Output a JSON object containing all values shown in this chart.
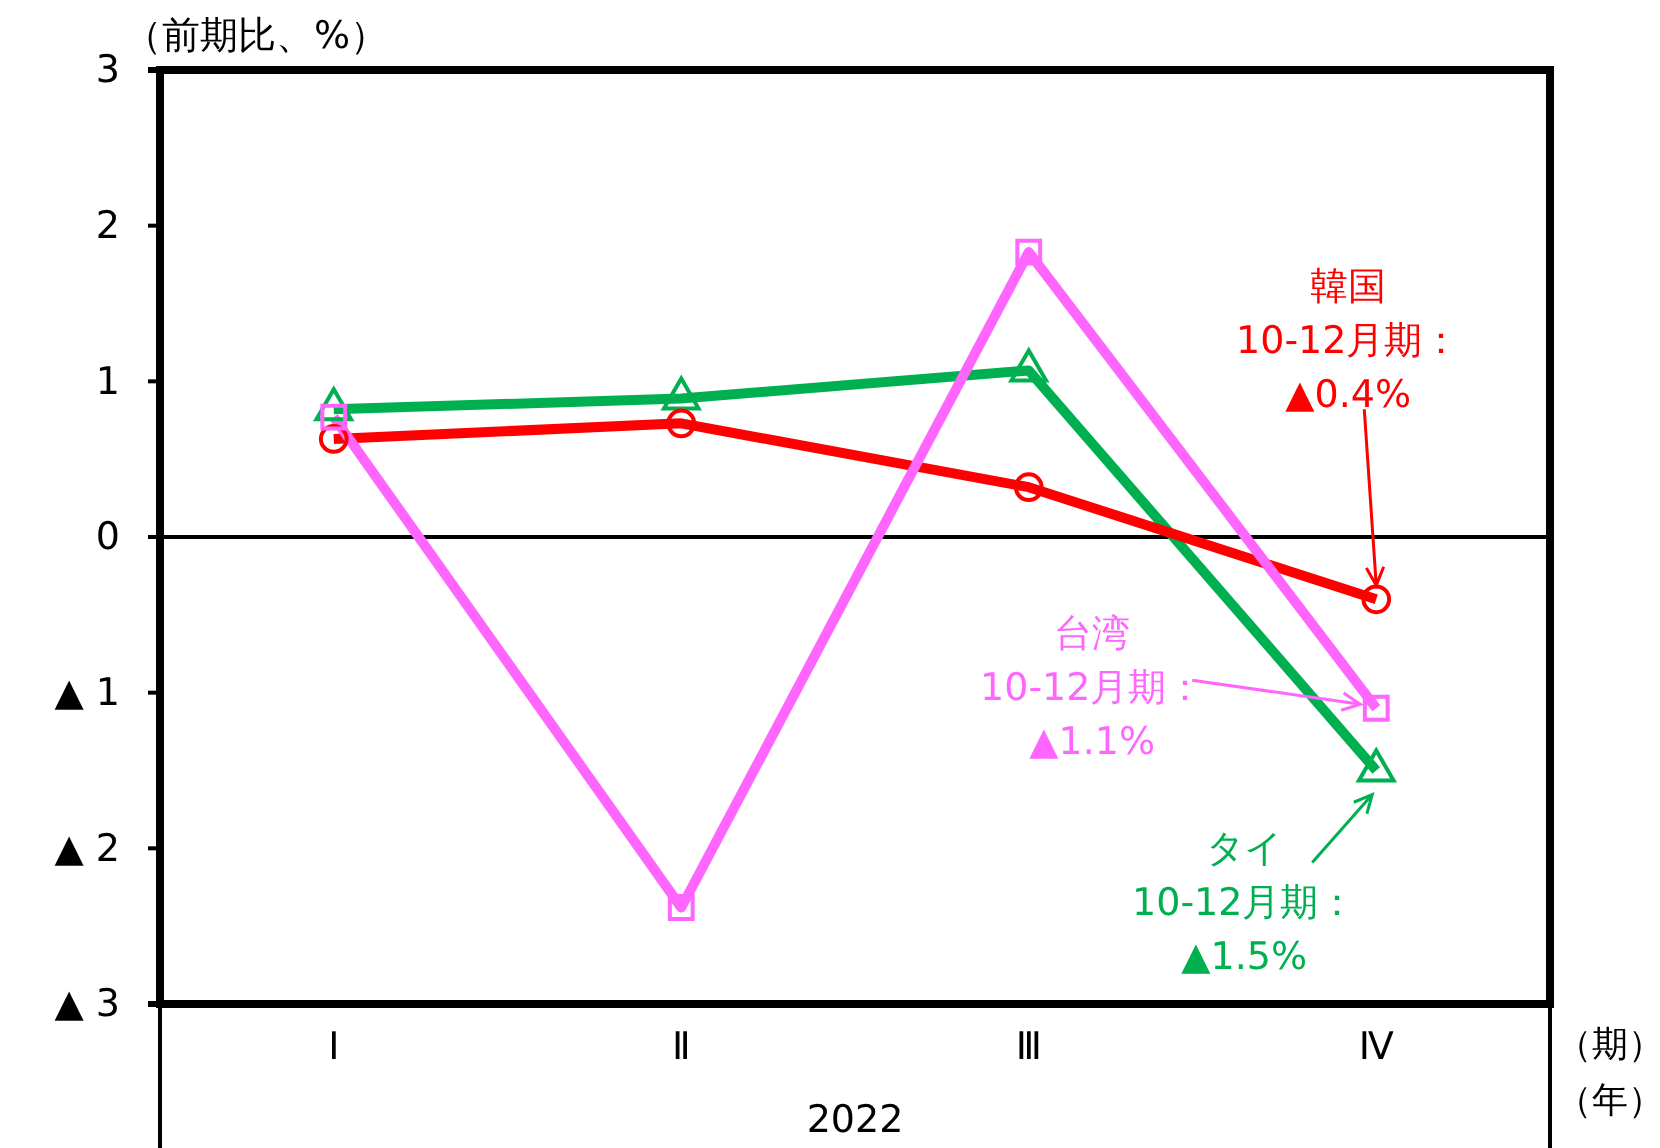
{
  "chart_data": {
    "type": "line",
    "ylabel": "（前期比、%）",
    "xlabel": "2022",
    "categories": [
      "Ⅰ",
      "Ⅱ",
      "Ⅲ",
      "Ⅳ"
    ],
    "series": [
      {
        "color": "#00b050",
        "marker": "triangle",
        "values": [
          0.82,
          0.89,
          1.07,
          -1.5
        ]
      },
      {
        "color": "#ff0000",
        "marker": "circle",
        "values": [
          0.63,
          0.73,
          0.32,
          -0.4
        ]
      },
      {
        "color": "#ff66ff",
        "marker": "square",
        "values": [
          0.77,
          -2.38,
          1.83,
          -1.1
        ]
      }
    ],
    "ylim": [
      -3,
      3
    ],
    "yticks": [
      {
        "value": -3,
        "label": "▲ 3"
      },
      {
        "value": -2,
        "label": "▲ 2"
      },
      {
        "value": -1,
        "label": "▲ 1"
      },
      0,
      1,
      2,
      3
    ],
    "ref_lines": [
      {
        "axis": "y",
        "value": 0,
        "color": "#000000"
      }
    ],
    "grid": false,
    "annotations": [
      {
        "text": "韓国\n10-12月期：\n▲0.4%",
        "x": "Ⅳ",
        "y": -0.4
      },
      {
        "text": "台湾\n10-12月期：\n▲1.1%",
        "x": "Ⅳ",
        "y": -1.1
      },
      {
        "text": "タイ\n10-12月期：\n▲1.5%",
        "x": "Ⅳ",
        "y": -1.5
      },
      "（期）",
      "（年）"
    ]
  }
}
